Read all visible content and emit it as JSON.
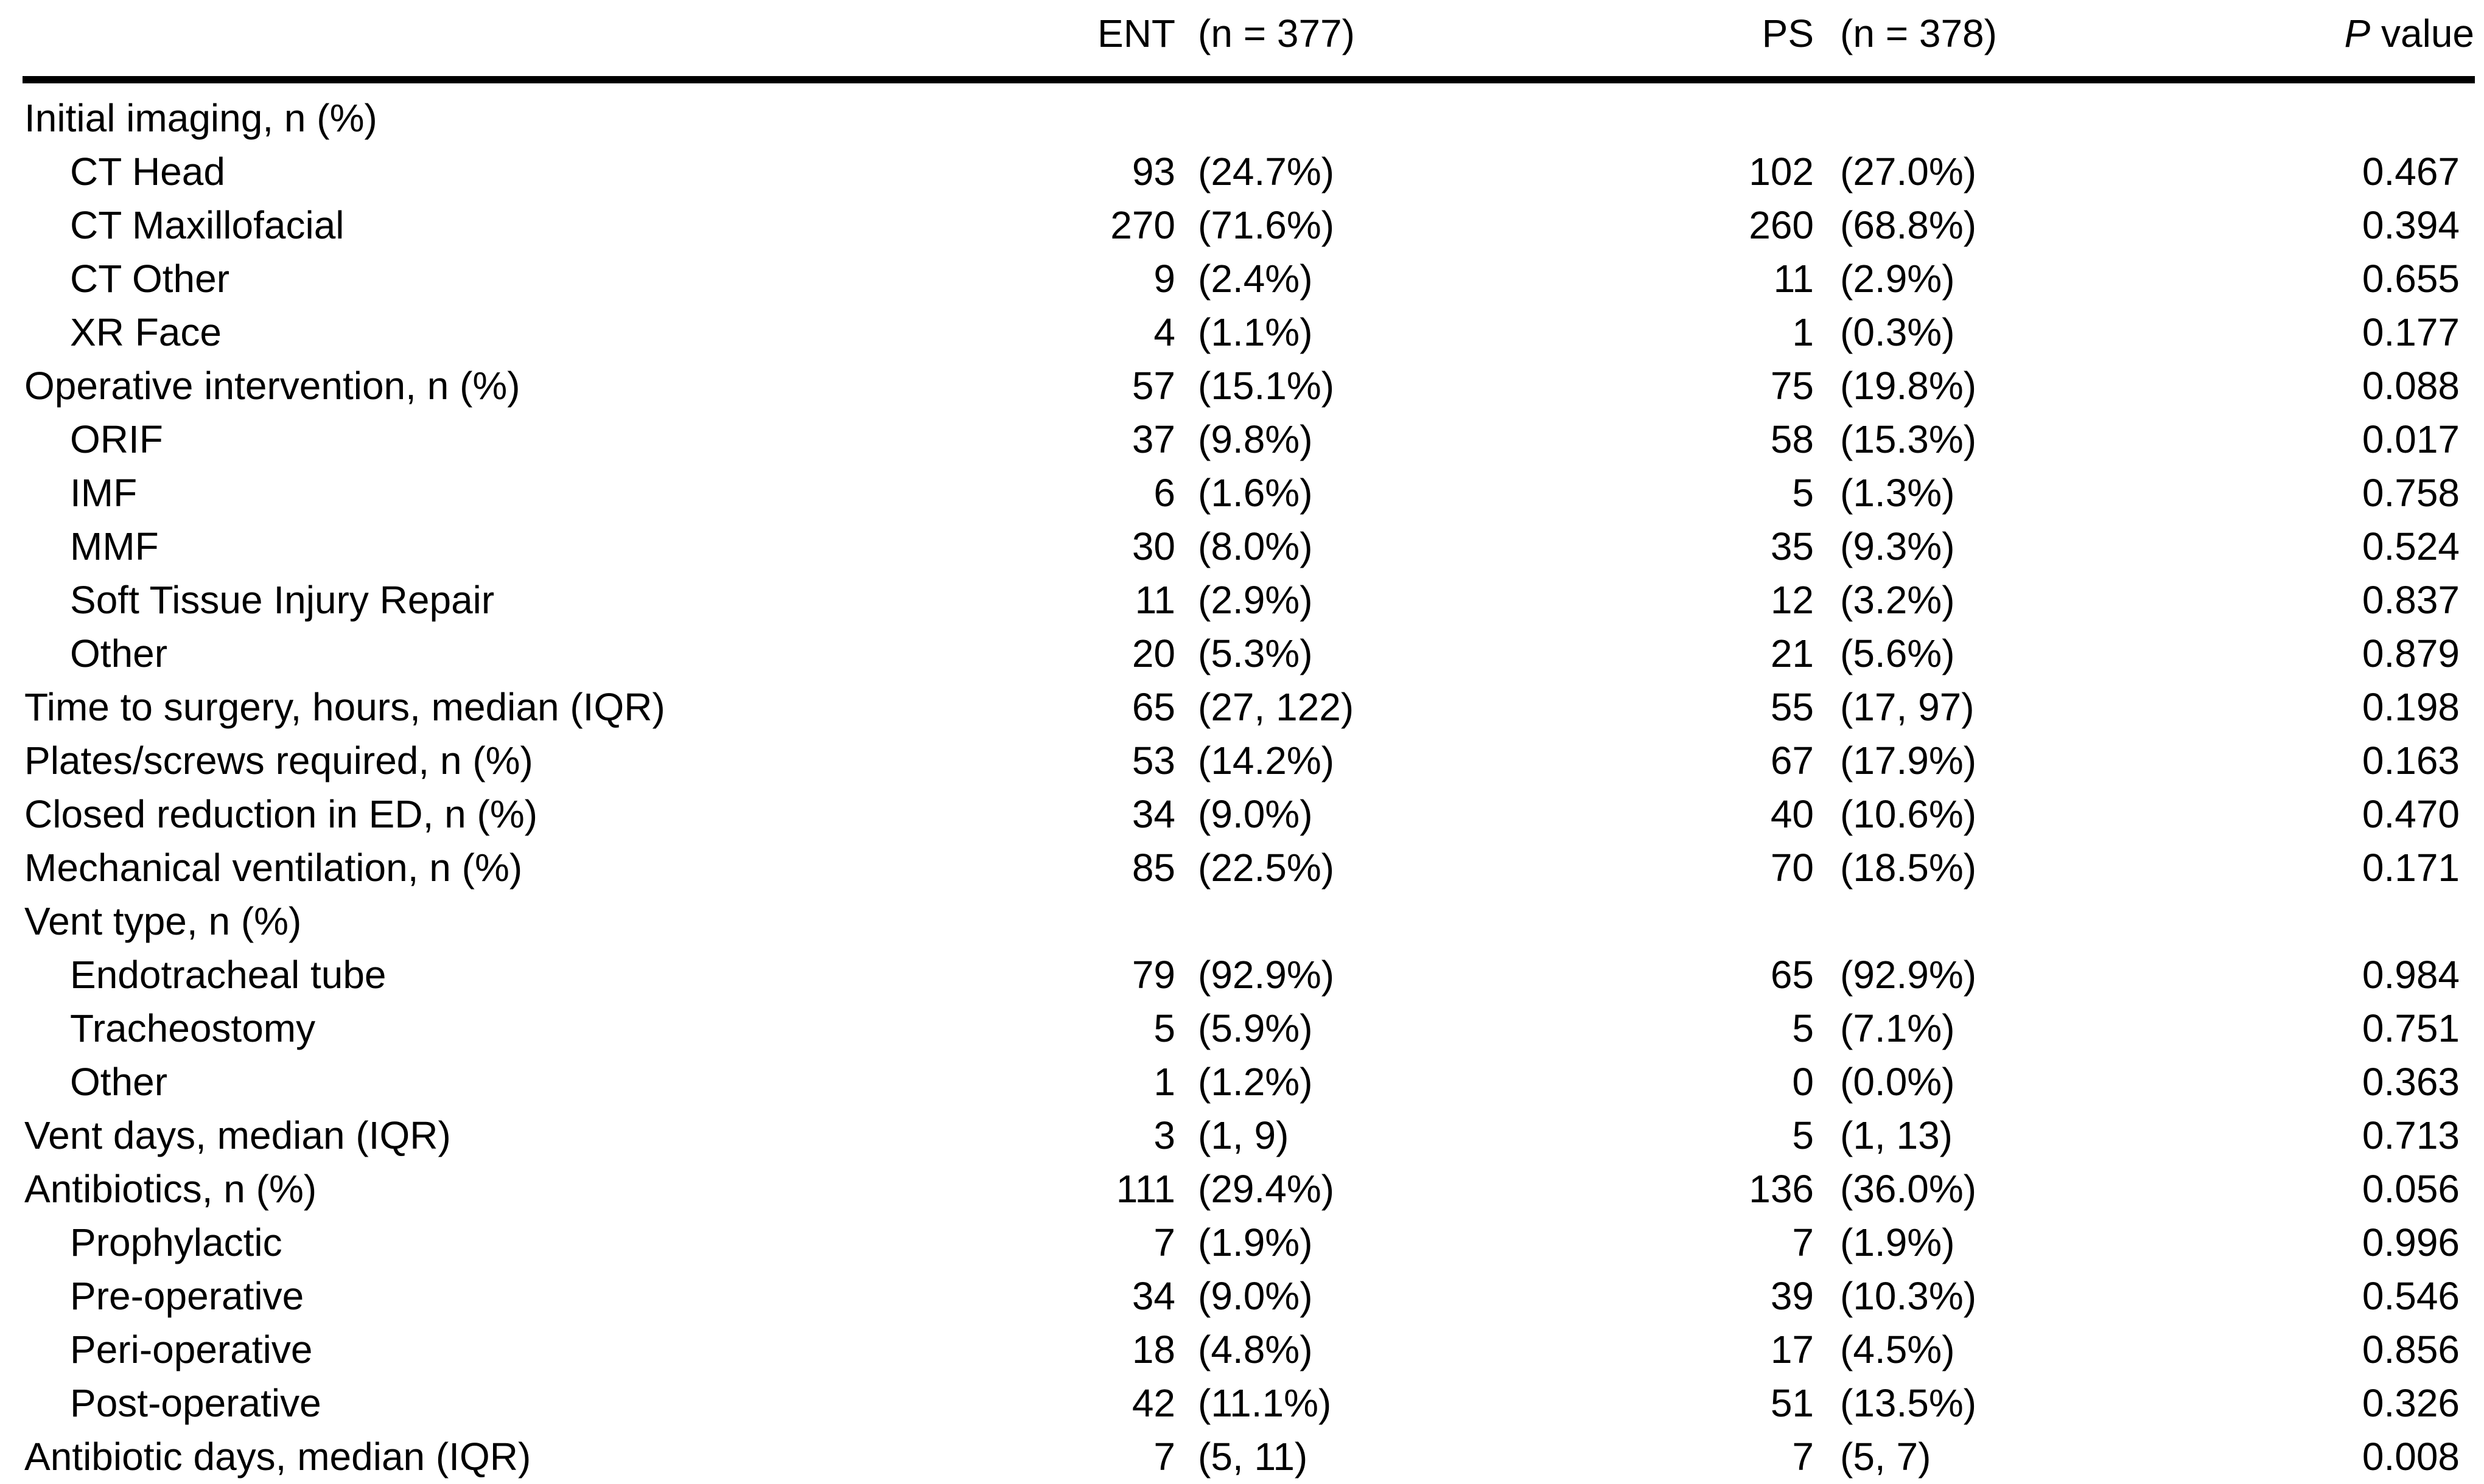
{
  "table": {
    "columns": {
      "ent": {
        "abbr": "ENT",
        "n": "(n = 377)"
      },
      "ps": {
        "abbr": "PS",
        "n": "(n = 378)"
      },
      "p": {
        "italic": "P",
        "rest": " value"
      }
    },
    "rows": [
      {
        "label": "Initial imaging, n (%)",
        "indent": 0,
        "ent": "",
        "ps": "",
        "p": ""
      },
      {
        "label": "CT Head",
        "indent": 1,
        "ent": "93 (24.7%)",
        "ps": "102 (27.0%)",
        "p": "0.467"
      },
      {
        "label": "CT Maxillofacial",
        "indent": 1,
        "ent": "270 (71.6%)",
        "ps": "260 (68.8%)",
        "p": "0.394"
      },
      {
        "label": "CT Other",
        "indent": 1,
        "ent": "9 (2.4%)",
        "ps": "11 (2.9%)",
        "p": "0.655"
      },
      {
        "label": "XR Face",
        "indent": 1,
        "ent": "4 (1.1%)",
        "ps": "1 (0.3%)",
        "p": "0.177"
      },
      {
        "label": "Operative intervention, n (%)",
        "indent": 0,
        "ent": "57 (15.1%)",
        "ps": "75 (19.8%)",
        "p": "0.088"
      },
      {
        "label": "ORIF",
        "indent": 1,
        "ent": "37 (9.8%)",
        "ps": "58 (15.3%)",
        "p": "0.017"
      },
      {
        "label": "IMF",
        "indent": 1,
        "ent": "6 (1.6%)",
        "ps": "5 (1.3%)",
        "p": "0.758"
      },
      {
        "label": "MMF",
        "indent": 1,
        "ent": "30 (8.0%)",
        "ps": "35 (9.3%)",
        "p": "0.524"
      },
      {
        "label": "Soft Tissue Injury Repair",
        "indent": 1,
        "ent": "11 (2.9%)",
        "ps": "12 (3.2%)",
        "p": "0.837"
      },
      {
        "label": "Other",
        "indent": 1,
        "ent": "20 (5.3%)",
        "ps": "21 (5.6%)",
        "p": "0.879"
      },
      {
        "label": "Time to surgery, hours, median (IQR)",
        "indent": 0,
        "ent": "65 (27, 122)",
        "ps": "55 (17, 97)",
        "p": "0.198"
      },
      {
        "label": "Plates/screws required, n (%)",
        "indent": 0,
        "ent": "53 (14.2%)",
        "ps": "67 (17.9%)",
        "p": "0.163"
      },
      {
        "label": "Closed reduction in ED, n (%)",
        "indent": 0,
        "ent": "34 (9.0%)",
        "ps": "40 (10.6%)",
        "p": "0.470"
      },
      {
        "label": "Mechanical ventilation, n (%)",
        "indent": 0,
        "ent": "85 (22.5%)",
        "ps": "70 (18.5%)",
        "p": "0.171"
      },
      {
        "label": "Vent type, n (%)",
        "indent": 0,
        "ent": "",
        "ps": "",
        "p": ""
      },
      {
        "label": "Endotracheal tube",
        "indent": 1,
        "ent": "79 (92.9%)",
        "ps": "65 (92.9%)",
        "p": "0.984"
      },
      {
        "label": "Tracheostomy",
        "indent": 1,
        "ent": "5 (5.9%)",
        "ps": "5 (7.1%)",
        "p": "0.751"
      },
      {
        "label": "Other",
        "indent": 1,
        "ent": "1 (1.2%)",
        "ps": "0 (0.0%)",
        "p": "0.363"
      },
      {
        "label": "Vent days, median (IQR)",
        "indent": 0,
        "ent": "3 (1, 9)",
        "ps": "5 (1, 13)",
        "p": "0.713"
      },
      {
        "label": "Antibiotics, n (%)",
        "indent": 0,
        "ent": "111 (29.4%)",
        "ps": "136 (36.0%)",
        "p": "0.056"
      },
      {
        "label": "Prophylactic",
        "indent": 1,
        "ent": "7 (1.9%)",
        "ps": "7 (1.9%)",
        "p": "0.996"
      },
      {
        "label": "Pre-operative",
        "indent": 1,
        "ent": "34 (9.0%)",
        "ps": "39 (10.3%)",
        "p": "0.546"
      },
      {
        "label": "Peri-operative",
        "indent": 1,
        "ent": "18 (4.8%)",
        "ps": "17 (4.5%)",
        "p": "0.856"
      },
      {
        "label": "Post-operative",
        "indent": 1,
        "ent": "42 (11.1%)",
        "ps": "51 (13.5%)",
        "p": "0.326"
      },
      {
        "label": "Antibiotic days, median (IQR)",
        "indent": 0,
        "ent": "7 (5, 11)",
        "ps": "7 (5, 7)",
        "p": "0.008"
      }
    ]
  }
}
